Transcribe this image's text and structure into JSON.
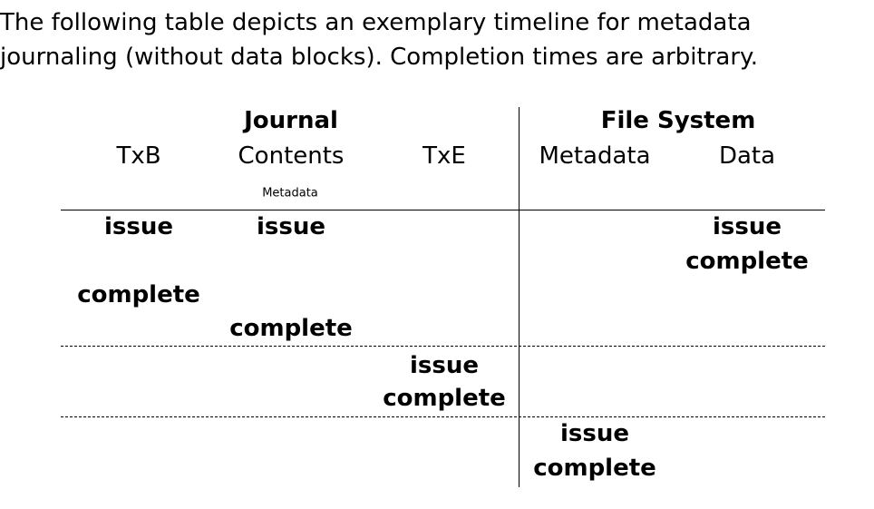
{
  "intro": {
    "line1": "The following table depicts an exemplary timeline for metadata",
    "line2": "journaling (without data blocks). Completion times are arbitrary."
  },
  "table": {
    "group_headers": {
      "journal": "Journal",
      "file_system": "File System"
    },
    "column_headers": {
      "txb": "TxB",
      "contents": "Contents",
      "contents_sub": "Metadata",
      "txe": "TxE",
      "metadata": "Metadata",
      "data": "Data"
    },
    "cells": {
      "r1_txb": "issue",
      "r1_contents": "issue",
      "r1_data": "issue",
      "r2_data": "complete",
      "r3_txb": "complete",
      "r4_contents": "complete",
      "r5_txe": "issue",
      "r6_txe": "complete",
      "r7_metadata": "issue",
      "r8_metadata": "complete"
    }
  }
}
